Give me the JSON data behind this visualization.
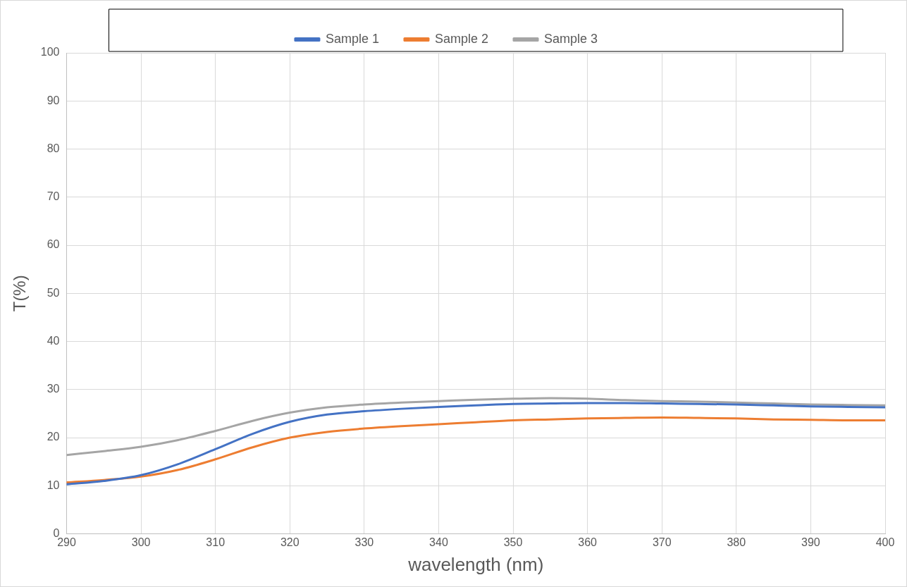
{
  "chart_data": {
    "type": "line",
    "xlabel": "wavelength (nm)",
    "ylabel": "T(%)",
    "x": [
      290,
      295,
      300,
      305,
      310,
      315,
      320,
      325,
      330,
      335,
      340,
      345,
      350,
      355,
      360,
      365,
      370,
      375,
      380,
      385,
      390,
      395,
      400
    ],
    "series": [
      {
        "name": "Sample 1",
        "color": "#4472c4",
        "values": [
          10.3,
          11.0,
          12.2,
          14.5,
          17.6,
          20.8,
          23.3,
          24.8,
          25.5,
          26.0,
          26.4,
          26.7,
          27.0,
          27.1,
          27.2,
          27.2,
          27.1,
          27.0,
          26.9,
          26.7,
          26.5,
          26.4,
          26.3
        ]
      },
      {
        "name": "Sample 2",
        "color": "#ed7d31",
        "values": [
          10.7,
          11.2,
          11.9,
          13.3,
          15.5,
          18.0,
          20.0,
          21.2,
          21.9,
          22.4,
          22.8,
          23.2,
          23.6,
          23.8,
          24.0,
          24.1,
          24.2,
          24.1,
          24.0,
          23.8,
          23.7,
          23.6,
          23.6
        ]
      },
      {
        "name": "Sample 3",
        "color": "#a5a5a5",
        "values": [
          16.4,
          17.2,
          18.1,
          19.5,
          21.4,
          23.5,
          25.2,
          26.3,
          26.9,
          27.3,
          27.6,
          27.9,
          28.1,
          28.2,
          28.1,
          27.8,
          27.6,
          27.5,
          27.3,
          27.1,
          26.9,
          26.8,
          26.7
        ]
      }
    ],
    "xlim": [
      290,
      400
    ],
    "xticks": [
      290,
      300,
      310,
      320,
      330,
      340,
      350,
      360,
      370,
      380,
      390,
      400
    ],
    "ylim": [
      0,
      100
    ],
    "yticks": [
      0,
      10,
      20,
      30,
      40,
      50,
      60,
      70,
      80,
      90,
      100
    ],
    "grid": true,
    "legend": "top",
    "marker": "none",
    "line_style": "solid"
  }
}
